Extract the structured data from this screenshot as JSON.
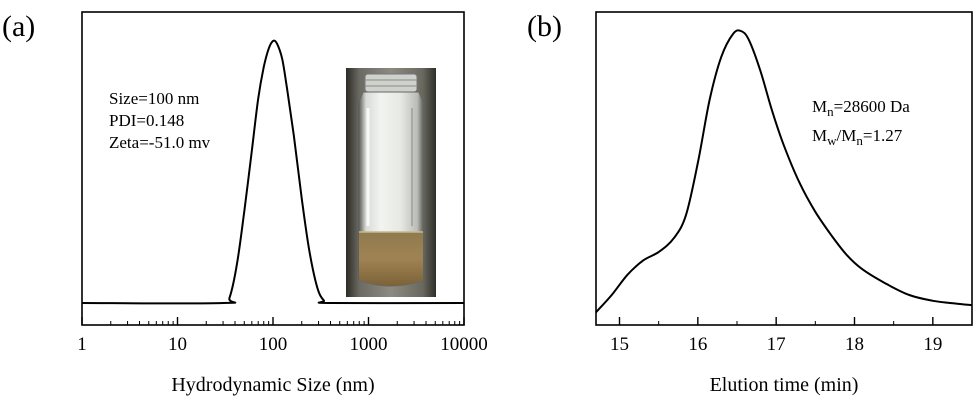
{
  "chart_data": [
    {
      "panel": "(a)",
      "type": "line",
      "xscale": "log",
      "xlabel": "Hydrodynamic Size (nm)",
      "ylabel": "",
      "xlim": [
        1,
        10000
      ],
      "xticks": [
        1,
        10,
        100,
        1000,
        10000
      ],
      "xtick_labels": [
        "1",
        "10",
        "100",
        "1000",
        "10000"
      ],
      "ylim": [
        0,
        1.1
      ],
      "annotations": [
        "Size=100 nm",
        "PDI=0.148",
        "Zeta=-51.0 mv"
      ],
      "inset": "photo-of-vial",
      "series": [
        {
          "x": [
            1,
            30,
            35,
            42,
            50,
            60,
            70,
            80,
            90,
            100,
            110,
            125,
            140,
            165,
            200,
            240,
            290,
            340,
            400,
            10000
          ],
          "y": [
            0,
            0,
            0.02,
            0.15,
            0.35,
            0.58,
            0.78,
            0.9,
            0.97,
            1.0,
            0.99,
            0.93,
            0.82,
            0.64,
            0.4,
            0.2,
            0.06,
            0.01,
            0,
            0
          ]
        }
      ]
    },
    {
      "panel": "(b)",
      "type": "line",
      "xlabel": "Elution time (min)",
      "ylabel": "",
      "xlim": [
        14.7,
        19.5
      ],
      "xticks": [
        15,
        16,
        17,
        18,
        19
      ],
      "xtick_labels": [
        "15",
        "16",
        "17",
        "18",
        "19"
      ],
      "ylim": [
        0,
        1.05
      ],
      "annotations": [
        {
          "main": "M",
          "sub": "n",
          "rest": "=28600 Da"
        },
        {
          "main": "M",
          "sub": "w",
          "mid": "/M",
          "sub2": "n",
          "rest": "=1.27"
        }
      ],
      "series": [
        {
          "x": [
            14.7,
            14.9,
            15.1,
            15.3,
            15.5,
            15.7,
            15.85,
            16.0,
            16.15,
            16.3,
            16.45,
            16.55,
            16.65,
            16.8,
            16.95,
            17.1,
            17.3,
            17.5,
            17.7,
            17.9,
            18.1,
            18.4,
            18.7,
            19.0,
            19.3,
            19.5
          ],
          "y": [
            0.02,
            0.08,
            0.15,
            0.2,
            0.23,
            0.28,
            0.36,
            0.54,
            0.76,
            0.91,
            0.99,
            1.0,
            0.97,
            0.86,
            0.72,
            0.6,
            0.47,
            0.37,
            0.29,
            0.22,
            0.17,
            0.12,
            0.08,
            0.06,
            0.05,
            0.045
          ]
        }
      ]
    }
  ]
}
